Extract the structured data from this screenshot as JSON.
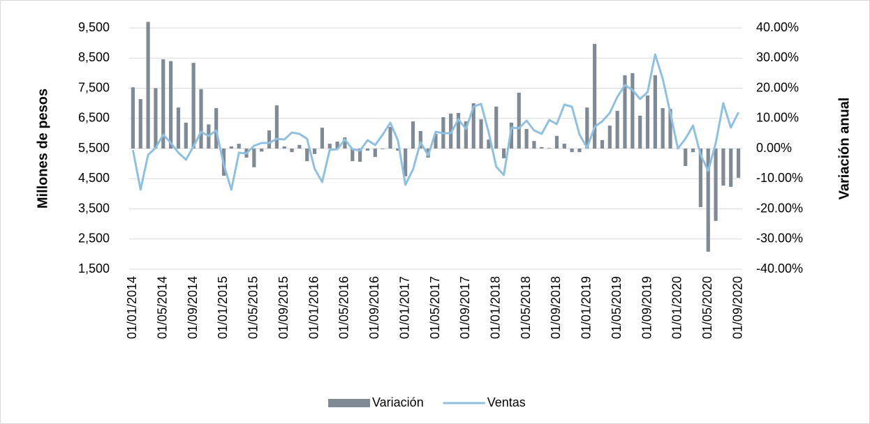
{
  "chart_data": {
    "type": "combo",
    "categories": [
      "01/01/2014",
      null,
      null,
      null,
      "01/05/2014",
      null,
      null,
      null,
      "01/09/2014",
      null,
      null,
      null,
      "01/01/2015",
      null,
      null,
      null,
      "01/05/2015",
      null,
      null,
      null,
      "01/09/2015",
      null,
      null,
      null,
      "01/01/2016",
      null,
      null,
      null,
      "01/05/2016",
      null,
      null,
      null,
      "01/09/2016",
      null,
      null,
      null,
      "01/01/2017",
      null,
      null,
      null,
      "01/05/2017",
      null,
      null,
      null,
      "01/09/2017",
      null,
      null,
      null,
      "01/01/2018",
      null,
      null,
      null,
      "01/05/2018",
      null,
      null,
      null,
      "01/09/2018",
      null,
      null,
      null,
      "01/01/2019",
      null,
      null,
      null,
      "01/05/2019",
      null,
      null,
      null,
      "01/09/2019",
      null,
      null,
      null,
      "01/01/2020",
      null,
      null,
      null,
      "01/05/2020",
      null,
      null,
      null,
      "01/09/2020"
    ],
    "series": [
      {
        "name": "Variación",
        "type": "bar",
        "axis": "y2",
        "color": "#7f8a94",
        "values": [
          20.3,
          16.4,
          42,
          20,
          29.6,
          29,
          13.6,
          8.6,
          28.4,
          19.7,
          8,
          13.4,
          -9,
          0.7,
          1.6,
          -3,
          -6.2,
          -1,
          6,
          14.3,
          0.7,
          -1.2,
          1.2,
          -4.2,
          -1.8,
          6.9,
          1.6,
          2.3,
          3.7,
          -4.2,
          -4.4,
          -0.7,
          -2.8,
          -0.2,
          7.2,
          -0.7,
          -9.2,
          9,
          5.8,
          -3,
          4.9,
          10.4,
          11.6,
          11.8,
          9,
          15,
          9.7,
          3,
          13.9,
          -3.2,
          8.6,
          18.5,
          6.5,
          2.5,
          0.5,
          0.2,
          4.2,
          1.6,
          -1.2,
          -1.2,
          13.6,
          34.7,
          2.8,
          7.6,
          12.5,
          24.3,
          25,
          10.9,
          17.6,
          24.3,
          13.4,
          13.2,
          0,
          -5.8,
          -1.2,
          -19.4,
          -34.2,
          -24,
          -12.3,
          -12.7,
          -9.7
        ]
      },
      {
        "name": "Ventas",
        "type": "line",
        "color": "#8fc0e0",
        "values": [
          5454,
          4136,
          5292,
          5523,
          5962,
          5685,
          5361,
          5130,
          5569,
          6055,
          5916,
          6101,
          4968,
          4136,
          5361,
          5338,
          5592,
          5685,
          5685,
          5824,
          5801,
          6032,
          5986,
          5824,
          4829,
          4390,
          5454,
          5477,
          5801,
          5477,
          5431,
          5777,
          5615,
          5962,
          6355,
          5777,
          4298,
          4806,
          5708,
          5269,
          6055,
          6009,
          6009,
          6471,
          6147,
          6887,
          6980,
          6032,
          4899,
          4621,
          6194,
          6171,
          6425,
          6101,
          5986,
          6448,
          6309,
          6957,
          6887,
          5962,
          5523,
          6217,
          6402,
          6679,
          7211,
          7604,
          7442,
          7142,
          7373,
          8621,
          7812,
          6679,
          5500,
          5824,
          6263,
          5292,
          4760,
          5685,
          7003,
          6194,
          6702
        ]
      }
    ],
    "ylabel": "Millones de pesos",
    "y2label": "Variación anual",
    "ylim": [
      1500,
      9500
    ],
    "yticks": [
      {
        "value": 1500,
        "label": "1,500"
      },
      {
        "value": 2500,
        "label": "2,500"
      },
      {
        "value": 3500,
        "label": "3,500"
      },
      {
        "value": 4500,
        "label": "4,500"
      },
      {
        "value": 5500,
        "label": "5,500"
      },
      {
        "value": 6500,
        "label": "6,500"
      },
      {
        "value": 7500,
        "label": "7,500"
      },
      {
        "value": 8500,
        "label": "8,500"
      },
      {
        "value": 9500,
        "label": "9,500"
      }
    ],
    "y2lim": [
      -40,
      40
    ],
    "y2ticks": [
      {
        "value": -40,
        "label": "-40.00%"
      },
      {
        "value": -30,
        "label": "-30.00%"
      },
      {
        "value": -20,
        "label": "-20.00%"
      },
      {
        "value": -10,
        "label": "-10.00%"
      },
      {
        "value": 0,
        "label": "0.00%"
      },
      {
        "value": 10,
        "label": "10.00%"
      },
      {
        "value": 20,
        "label": "20.00%"
      },
      {
        "value": 30,
        "label": "30.00%"
      },
      {
        "value": 40,
        "label": "40.00%"
      }
    ],
    "grid": true,
    "legend": "bottom"
  }
}
